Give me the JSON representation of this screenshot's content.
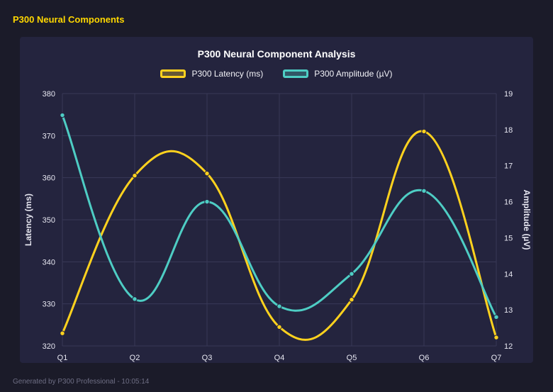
{
  "header": {
    "title": "P300 Neural Components"
  },
  "footer": {
    "text": "Generated by P300 Professional - 10:05:14"
  },
  "chart_data": {
    "type": "line",
    "title": "P300 Neural Component Analysis",
    "categories": [
      "Q1",
      "Q2",
      "Q3",
      "Q4",
      "Q5",
      "Q6",
      "Q7"
    ],
    "series": [
      {
        "name": "P300 Latency (ms)",
        "axis": "left",
        "color": "#ffd21e",
        "values": [
          323,
          360.5,
          361,
          324.5,
          331,
          371,
          322
        ]
      },
      {
        "name": "P300 Amplitude (µV)",
        "axis": "right",
        "color": "#4ecdc4",
        "values": [
          18.4,
          13.3,
          16,
          13.1,
          14,
          16.3,
          12.8
        ]
      }
    ],
    "left_axis": {
      "label": "Latency (ms)",
      "min": 320,
      "max": 380,
      "step": 10
    },
    "right_axis": {
      "label": "Amplitude (µV)",
      "min": 12,
      "max": 19,
      "step": 1
    },
    "grid": true,
    "legend_position": "top",
    "smooth": true,
    "colors": {
      "page_background": "#1b1b29",
      "panel_background": "#24243e",
      "grid": "#383857",
      "text": "#e6e6f0",
      "title": "#ffffff",
      "header_accent": "#ffd700"
    }
  }
}
